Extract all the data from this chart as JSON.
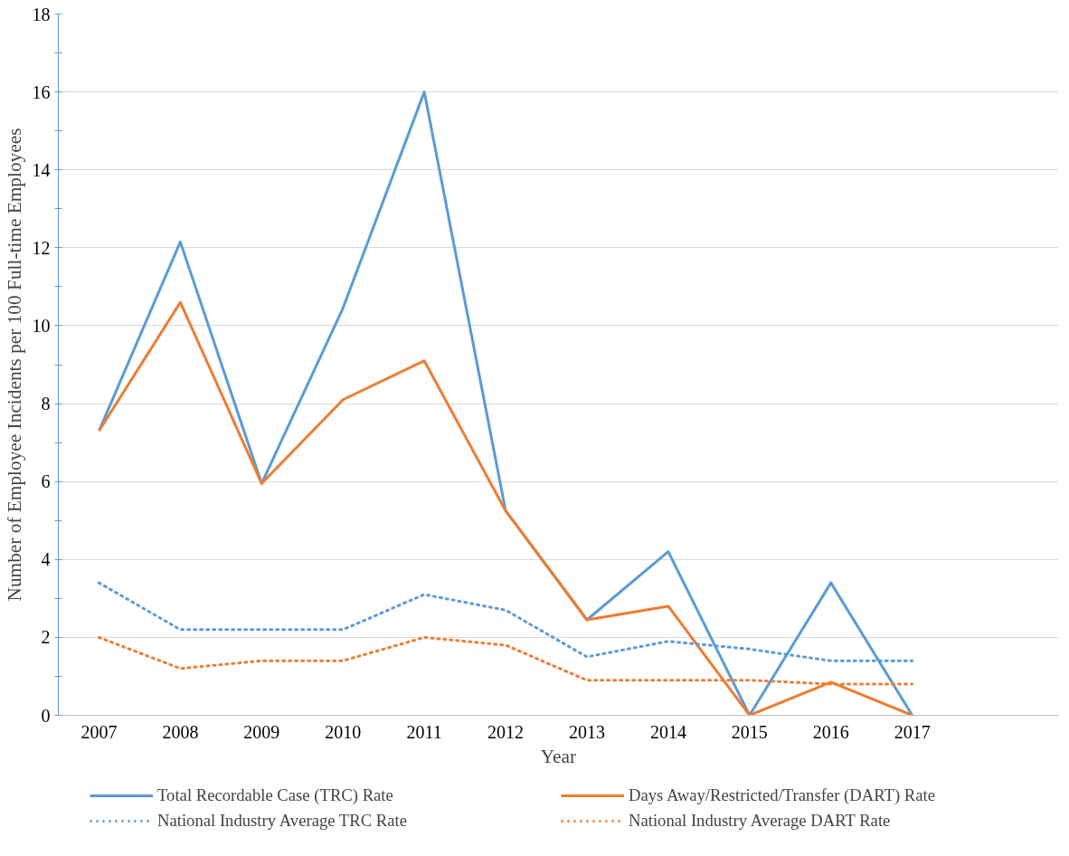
{
  "chart_data": {
    "type": "line",
    "xlabel": "Year",
    "ylabel": "Number of Employee Incidents per 100 Full-time Employees",
    "x": [
      2007,
      2008,
      2009,
      2010,
      2011,
      2012,
      2013,
      2014,
      2015,
      2016,
      2017
    ],
    "xlim": [
      2006.5,
      2018.8
    ],
    "xticks": [
      2007,
      2008,
      2009,
      2010,
      2011,
      2012,
      2013,
      2014,
      2015,
      2016,
      2017
    ],
    "ylim": [
      0,
      18
    ],
    "yticks": [
      0,
      2,
      4,
      6,
      8,
      10,
      12,
      14,
      16,
      18
    ],
    "grid": "y",
    "legend": "bottom",
    "marker": "none",
    "series": [
      {
        "name": "Total Recordable Case (TRC) Rate",
        "color": "#5b9bd5",
        "line_style": "solid",
        "values": [
          7.3,
          12.15,
          5.95,
          10.45,
          16.0,
          5.25,
          2.45,
          4.2,
          0,
          3.4,
          0
        ]
      },
      {
        "name": "Days Away/Restricted/Transfer (DART) Rate",
        "color": "#ed7d31",
        "line_style": "solid",
        "values": [
          7.3,
          10.6,
          5.95,
          8.1,
          9.1,
          5.25,
          2.45,
          2.8,
          0,
          0.85,
          0
        ]
      },
      {
        "name": "National Industry Average TRC Rate",
        "color": "#5b9bd5",
        "line_style": "dotted",
        "values": [
          3.4,
          2.2,
          2.2,
          2.2,
          3.1,
          2.7,
          1.5,
          1.9,
          1.7,
          1.4,
          1.4
        ]
      },
      {
        "name": "National Industry Average DART Rate",
        "color": "#ed7d31",
        "line_style": "dotted",
        "values": [
          2.0,
          1.2,
          1.4,
          1.4,
          2.0,
          1.8,
          0.9,
          0.9,
          0.9,
          0.8,
          0.8
        ]
      }
    ]
  }
}
